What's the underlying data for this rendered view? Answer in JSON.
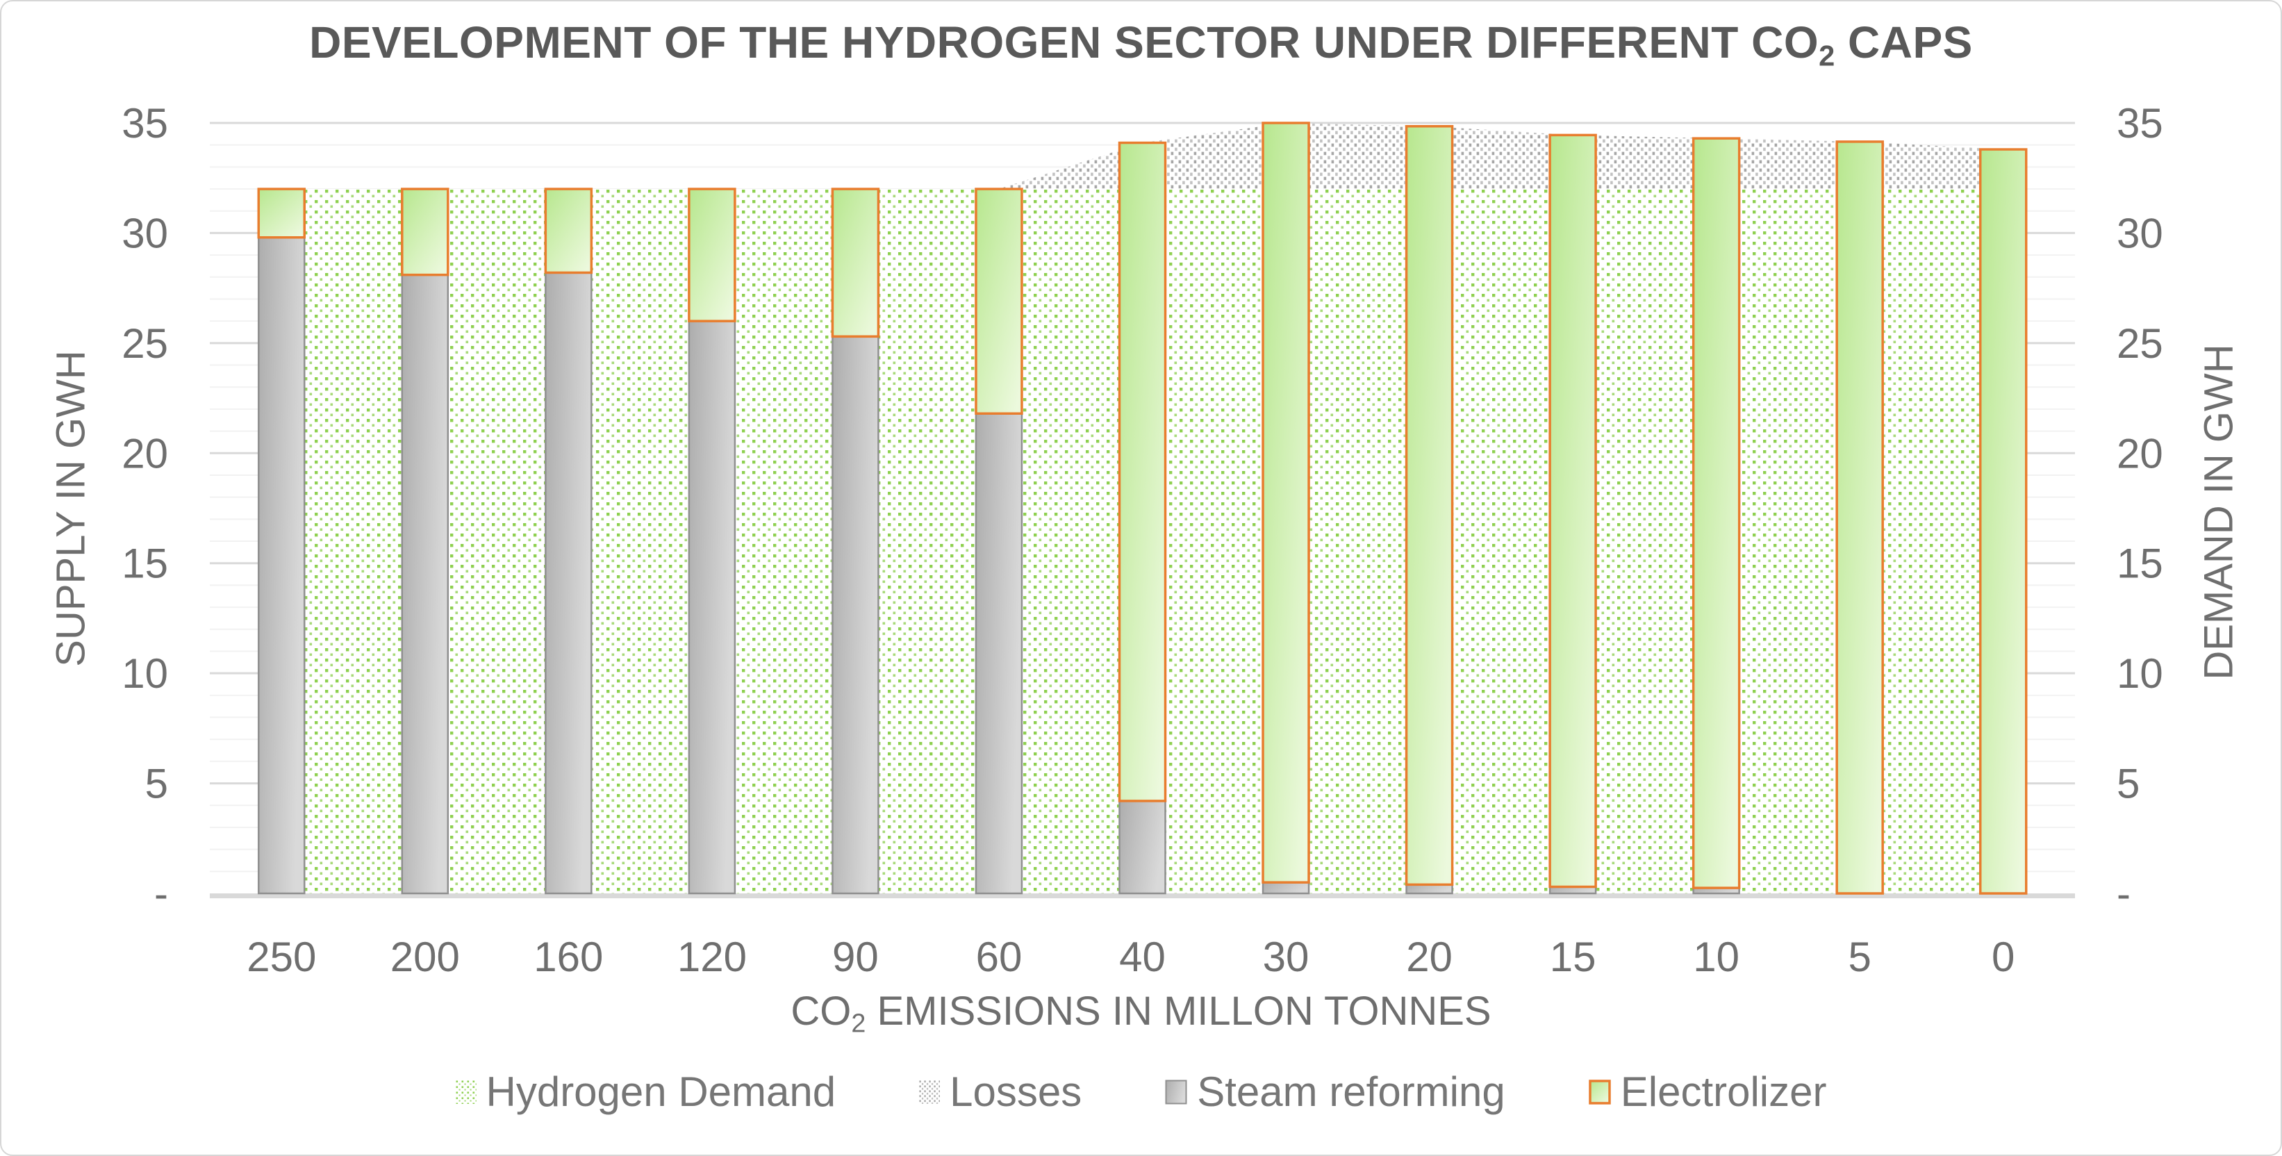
{
  "title": {
    "prefix": "DEVELOPMENT OF THE HYDROGEN SECTOR UNDER DIFFERENT CO",
    "sub": "2",
    "suffix": " CAPS"
  },
  "axes": {
    "left_title": "SUPPLY IN GWH",
    "right_title": "DEMAND IN GWH",
    "x_title_prefix": "CO",
    "x_title_sub": "2",
    "x_title_suffix": " EMISSIONS IN MILLON TONNES",
    "y_ticks": [
      "35",
      "30",
      "25",
      "20",
      "15",
      "10",
      "5",
      "-"
    ],
    "y_values": [
      35,
      30,
      25,
      20,
      15,
      10,
      5,
      0
    ]
  },
  "legend": [
    {
      "label": "Hydrogen Demand",
      "swatch": "green-dots"
    },
    {
      "label": "Losses",
      "swatch": "gray-dots"
    },
    {
      "label": "Steam reforming",
      "swatch": "gray-solid"
    },
    {
      "label": "Electrolizer",
      "swatch": "green-solid"
    }
  ],
  "colors": {
    "orange_border": "#E87D2E",
    "green_dot": "#8ED050",
    "green_dot_light": "#A8DA7A",
    "gray_dot": "#A6A6A6",
    "gray_dot_light": "#C2C2C2",
    "bar_green_start": "#B7E78E",
    "bar_green_end": "#ECF9DD",
    "bar_gray_start": "#ADADAD",
    "bar_gray_end": "#D9D9D9",
    "bar_gray_stroke": "#8F8F8F",
    "grid_major": "#D9D9D9",
    "grid_minor": "#F2F2F2",
    "tick_text": "#6E6E6E"
  },
  "chart_data": {
    "type": "bar",
    "subtype": "combo: stacked areas (demand side) behind stacked bars (supply side)",
    "title": "DEVELOPMENT OF THE HYDROGEN SECTOR UNDER DIFFERENT CO2 CAPS",
    "xlabel": "CO2 EMISSIONS IN MILLON TONNES",
    "ylabel_left": "SUPPLY IN GWH",
    "ylabel_right": "DEMAND IN GWH",
    "ylim": [
      0,
      35
    ],
    "grid": "minor every 1, major every 5",
    "legend_position": "bottom",
    "categories": [
      "250",
      "200",
      "160",
      "120",
      "90",
      "60",
      "40",
      "30",
      "20",
      "15",
      "10",
      "5",
      "0"
    ],
    "series": [
      {
        "name": "Hydrogen Demand",
        "type": "area",
        "stack": "demand",
        "values": [
          32,
          32,
          32,
          32,
          32,
          32,
          32,
          32,
          32,
          32,
          32,
          32,
          32
        ]
      },
      {
        "name": "Losses",
        "type": "area",
        "stack": "demand",
        "values": [
          0,
          0,
          0,
          0,
          0,
          0,
          2.1,
          3.0,
          2.85,
          2.45,
          2.3,
          2.15,
          1.8
        ]
      },
      {
        "name": "Steam reforming",
        "type": "bar",
        "stack": "supply",
        "values": [
          29.8,
          28.1,
          28.2,
          26.0,
          25.3,
          21.8,
          4.2,
          0.5,
          0.4,
          0.3,
          0.25,
          0,
          0
        ]
      },
      {
        "name": "Electrolizer",
        "type": "bar",
        "stack": "supply",
        "values": [
          2.2,
          3.9,
          3.8,
          6.0,
          6.7,
          10.2,
          29.9,
          34.5,
          34.45,
          34.15,
          34.05,
          34.15,
          33.8
        ]
      }
    ]
  }
}
